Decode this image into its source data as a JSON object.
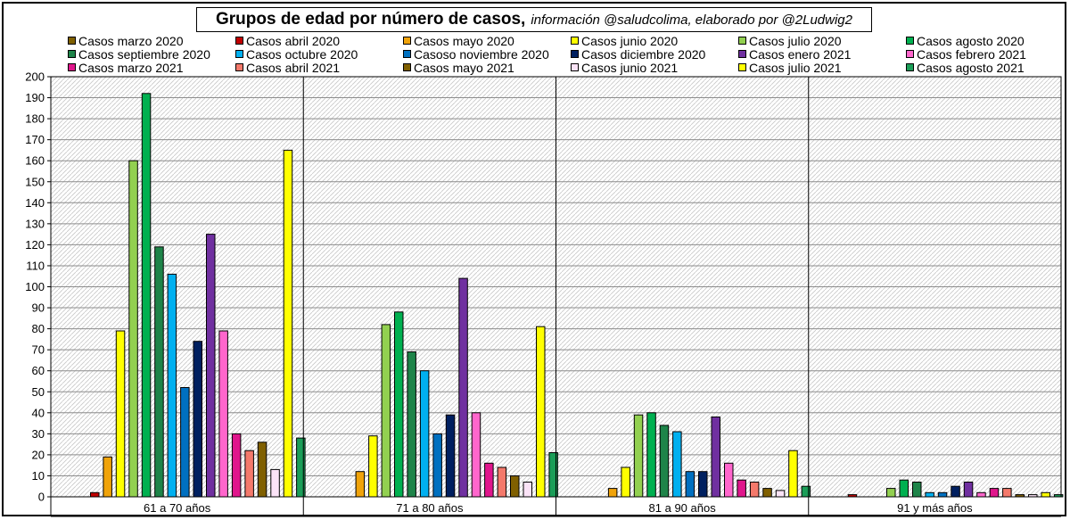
{
  "chart_data": {
    "type": "bar",
    "title": "Grupos de edad por número de casos,",
    "subtitle": "información @saludcolima, elaborado por @2Ludwig2",
    "categories": [
      "61 a 70 años",
      "71 a 80 años",
      "81 a 90 años",
      "91 y más años"
    ],
    "ylim": [
      0,
      200
    ],
    "ytick_step": 10,
    "grid": true,
    "legend_position": "top",
    "series": [
      {
        "name": "Casos marzo 2020",
        "color": "#7f6000",
        "values": [
          0,
          0,
          0,
          0
        ]
      },
      {
        "name": "Casos abril 2020",
        "color": "#c00000",
        "values": [
          2,
          0,
          0,
          1
        ]
      },
      {
        "name": "Casos mayo 2020",
        "color": "#f0a30a",
        "values": [
          19,
          12,
          4,
          0
        ]
      },
      {
        "name": "Casos junio 2020",
        "color": "#ffff00",
        "values": [
          79,
          29,
          14,
          0
        ]
      },
      {
        "name": "Casos julio 2020",
        "color": "#92d050",
        "values": [
          160,
          82,
          39,
          4
        ]
      },
      {
        "name": "Casos agosto 2020",
        "color": "#00b050",
        "values": [
          192,
          88,
          40,
          8
        ]
      },
      {
        "name": "Casos septiembre 2020",
        "color": "#1e8449",
        "values": [
          119,
          69,
          34,
          7
        ]
      },
      {
        "name": "Casos octubre 2020",
        "color": "#00b0f0",
        "values": [
          106,
          60,
          31,
          2
        ]
      },
      {
        "name": "Casoso noviembre 2020",
        "color": "#0070c0",
        "values": [
          52,
          30,
          12,
          2
        ]
      },
      {
        "name": "Casos diciembre 2020",
        "color": "#002060",
        "values": [
          74,
          39,
          12,
          5
        ]
      },
      {
        "name": "Casos enero 2021",
        "color": "#7030a0",
        "values": [
          125,
          104,
          38,
          7
        ]
      },
      {
        "name": "Casos febrero 2021",
        "color": "#ff66cc",
        "values": [
          79,
          40,
          16,
          2
        ]
      },
      {
        "name": "Casos marzo 2021",
        "color": "#e0168c",
        "values": [
          30,
          16,
          8,
          4
        ]
      },
      {
        "name": "Casos abril 2021",
        "color": "#f4796b",
        "values": [
          22,
          14,
          7,
          4
        ]
      },
      {
        "name": "Casos mayo 2021",
        "color": "#806000",
        "values": [
          26,
          10,
          4,
          1
        ]
      },
      {
        "name": "Casos junio 2021",
        "color": "#fbe3f7",
        "values": [
          13,
          7,
          3,
          1
        ]
      },
      {
        "name": "Casos julio 2021",
        "color": "#ffff00",
        "values": [
          165,
          81,
          22,
          2
        ]
      },
      {
        "name": "Casos agosto 2021",
        "color": "#1b9e58",
        "values": [
          28,
          21,
          5,
          1
        ]
      }
    ]
  }
}
